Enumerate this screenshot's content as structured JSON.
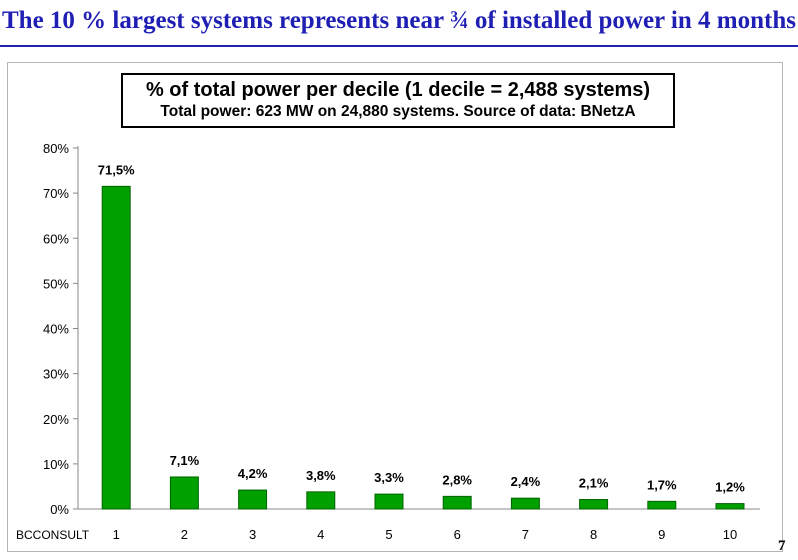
{
  "slide": {
    "title": "The 10 % largest systems represents near ¾ of installed power in 4 months",
    "page_number": "7",
    "footer_source": "BCCONSULT"
  },
  "colors": {
    "title": "#1f1fb4",
    "bar": "#00a000",
    "bar_edge": "#006400"
  },
  "chart_data": {
    "type": "bar",
    "title": "% of total power per decile (1 decile = 2,488 systems)",
    "subtitle": "Total power: 623 MW on 24,880 systems. Source of data: BNetzA",
    "categories": [
      "1",
      "2",
      "3",
      "4",
      "5",
      "6",
      "7",
      "8",
      "9",
      "10"
    ],
    "values": [
      71.5,
      7.1,
      4.2,
      3.8,
      3.3,
      2.8,
      2.4,
      2.1,
      1.7,
      1.2
    ],
    "data_labels": [
      "71,5%",
      "7,1%",
      "4,2%",
      "3,8%",
      "3,3%",
      "2,8%",
      "2,4%",
      "2,1%",
      "1,7%",
      "1,2%"
    ],
    "y_ticks": [
      "0%",
      "10%",
      "20%",
      "30%",
      "40%",
      "50%",
      "60%",
      "70%",
      "80%"
    ],
    "ylim": [
      0,
      80
    ],
    "grid": false,
    "legend": "none"
  }
}
